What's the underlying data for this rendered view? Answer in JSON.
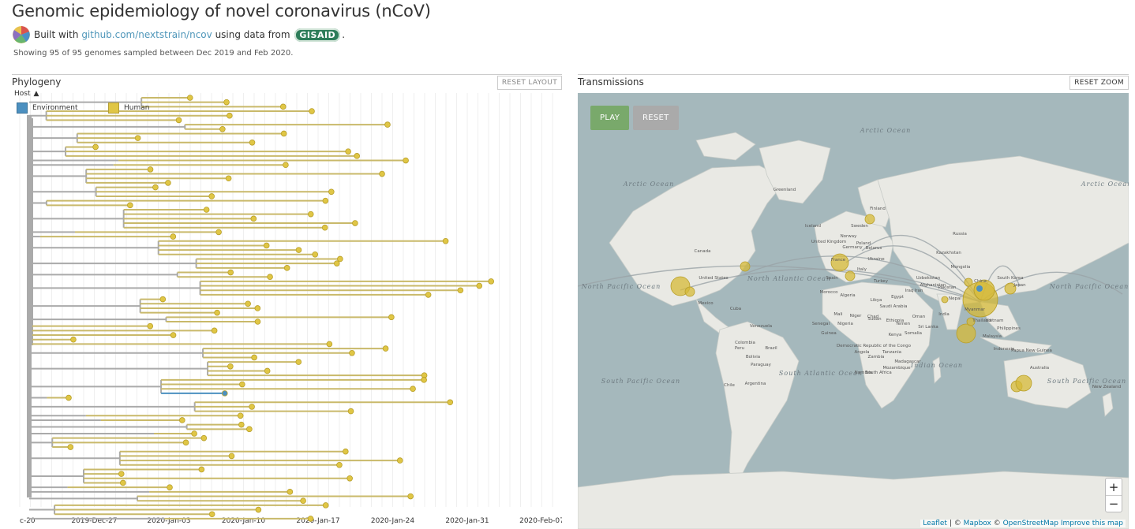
{
  "header": {
    "title": "Genomic epidemiology of novel coronavirus (nCoV)",
    "built_prefix": "Built with",
    "repo_link": "github.com/nextstrain/ncov",
    "data_prefix": "using data from",
    "gisaid_logo": "GISAID",
    "period": ".",
    "summary": "Showing 95 of 95 genomes sampled between Dec 2019 and Feb 2020."
  },
  "phylogeny": {
    "title": "Phylogeny",
    "reset_label": "RESET LAYOUT",
    "legend_title": "Host",
    "legend_items": [
      {
        "label": "Environment",
        "color": "#4C90C0"
      },
      {
        "label": "Human",
        "color": "#E0C645"
      }
    ],
    "x_ticks": [
      "c-20",
      "2019-Dec-27",
      "2020-Jan-03",
      "2020-Jan-10",
      "2020-Jan-17",
      "2020-Jan-24",
      "2020-Jan-31",
      "2020-Feb-07"
    ],
    "branch_color": "#AAAAAA",
    "tip_color": "#E0C645",
    "env_color": "#4C90C0"
  },
  "transmissions": {
    "title": "Transmissions",
    "reset_label": "RESET ZOOM",
    "play_label": "PLAY",
    "reset_map_label": "RESET",
    "zoom_in": "+",
    "zoom_out": "−",
    "ocean_labels": [
      "Arctic Ocean",
      "Arctic Ocean",
      "Arctic Ocean",
      "North Pacific Ocean",
      "North Atlantic Ocean",
      "North Pacific Ocean",
      "Indian Ocean",
      "South Pacific Ocean",
      "South Atlantic Ocean",
      "South Pacific Ocean"
    ],
    "country_labels": [
      "Greenland",
      "Iceland",
      "Norway",
      "Sweden",
      "Finland",
      "Russia",
      "Canada",
      "United States",
      "Mexico",
      "Cuba",
      "Venezuela",
      "Colombia",
      "Peru",
      "Brazil",
      "Bolivia",
      "Paraguay",
      "Argentina",
      "Chile",
      "Spain",
      "Morocco",
      "Algeria",
      "Libya",
      "Egypt",
      "Mali",
      "Niger",
      "Chad",
      "Sudan",
      "Nigeria",
      "Ethiopia",
      "Kenya",
      "Tanzania",
      "Angola",
      "Namibia",
      "South Africa",
      "Madagascar",
      "Turkey",
      "Iran",
      "Iraq",
      "Saudi Arabia",
      "Kazakhstan",
      "Uzbekistan",
      "Pakistan",
      "India",
      "Mongolia",
      "Sri Lanka",
      "Indonesia",
      "Australia",
      "New Zealand",
      "Ukraine",
      "Belarus",
      "Senegal",
      "Guinea",
      "Democratic Republic of the Congo",
      "Mozambique",
      "Zambia",
      "Somalia",
      "Yemen",
      "Oman",
      "Afghanistan",
      "Nepal",
      "Myanmar",
      "Thailand",
      "Vietnam",
      "Philippines",
      "Malaysia",
      "Papua New Guinea",
      "United Kingdom",
      "Germany",
      "France",
      "Italy",
      "Poland",
      "Japan",
      "South Korea",
      "China"
    ],
    "attribution": {
      "leaflet": "Leaflet",
      "mapbox": "Mapbox",
      "osm": "OpenStreetMap",
      "improve": "Improve this map",
      "sep": " | © ",
      "sep2": " © "
    }
  }
}
